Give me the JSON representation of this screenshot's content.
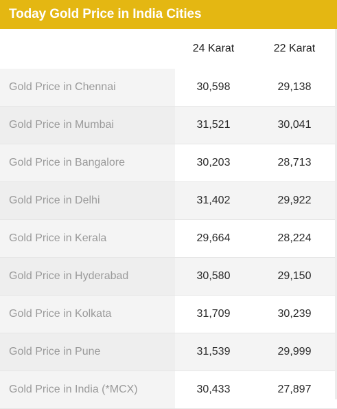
{
  "header": {
    "title": "Today Gold Price in India Cities"
  },
  "table": {
    "columns": [
      "",
      "24 Karat",
      "22 Karat"
    ],
    "rows": [
      {
        "city": "Gold Price in Chennai",
        "k24": "30,598",
        "k22": "29,138"
      },
      {
        "city": "Gold Price in Mumbai",
        "k24": "31,521",
        "k22": "30,041"
      },
      {
        "city": "Gold Price in Bangalore",
        "k24": "30,203",
        "k22": "28,713"
      },
      {
        "city": "Gold Price in Delhi",
        "k24": "31,402",
        "k22": "29,922"
      },
      {
        "city": "Gold Price in Kerala",
        "k24": "29,664",
        "k22": "28,224"
      },
      {
        "city": "Gold Price in Hyderabad",
        "k24": "30,580",
        "k22": "29,150"
      },
      {
        "city": "Gold Price in Kolkata",
        "k24": "31,709",
        "k22": "30,239"
      },
      {
        "city": "Gold Price in Pune",
        "k24": "31,539",
        "k22": "29,999"
      },
      {
        "city": "Gold Price in India (*MCX)",
        "k24": "30,433",
        "k22": "27,897"
      }
    ]
  },
  "colors": {
    "header_background": "#e4b712",
    "header_text": "#ffffff",
    "city_text": "#9a9a9a",
    "value_text": "#2b2b2b",
    "row_stripe": "#f4f4f4"
  }
}
